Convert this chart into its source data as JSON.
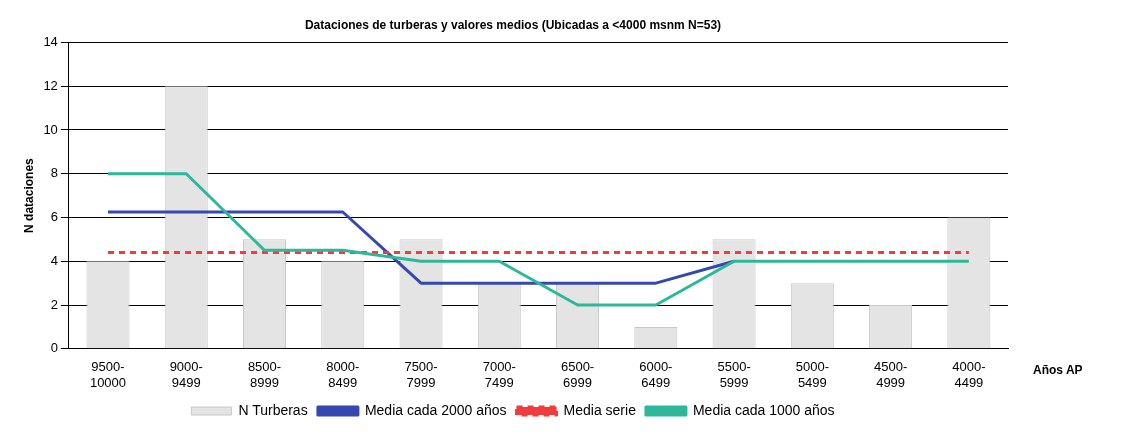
{
  "chart_data": {
    "type": "bar",
    "title": "Dataciones de turberas y valores medios (Ubicadas a <4000 msnm N=53)",
    "xlabel": "Años AP",
    "ylabel": "N dataciones",
    "categories": [
      "9500-10000",
      "9000-9499",
      "8500-8999",
      "8000-8499",
      "7500-7999",
      "7000-7499",
      "6500-6999",
      "6000-6499",
      "5500-5999",
      "5000-5499",
      "4500-4999",
      "4000-4499"
    ],
    "series": [
      {
        "name": "N Turberas",
        "color": "#e4e4e4",
        "values": [
          4,
          12,
          5,
          4,
          5,
          3,
          3,
          1,
          5,
          3,
          2,
          6
        ]
      },
      {
        "name": "Media cada 2000 años",
        "type": "line",
        "color": "#3548b0",
        "line_style": "solid",
        "values": [
          6.25,
          6.25,
          6.25,
          6.25,
          3,
          3,
          3,
          3,
          4,
          null,
          null,
          null
        ]
      },
      {
        "name": "Media serie",
        "type": "line",
        "color": "#f03c3c",
        "line_style": "dashed",
        "values": [
          4.4,
          4.4,
          4.4,
          4.4,
          4.4,
          4.4,
          4.4,
          4.4,
          4.4,
          4.4,
          4.4,
          4.4
        ]
      },
      {
        "name": "Media cada 1000 años",
        "type": "line",
        "color": "#2eb89a",
        "line_style": "solid",
        "values": [
          8,
          8,
          4.5,
          4.5,
          4,
          4,
          2,
          2,
          4,
          4,
          4,
          4
        ]
      }
    ],
    "ylim": [
      0,
      14
    ],
    "yticks": [
      0,
      2,
      4,
      6,
      8,
      10,
      12,
      14
    ],
    "grid": "y",
    "legend": "bottom",
    "marker": "none"
  }
}
